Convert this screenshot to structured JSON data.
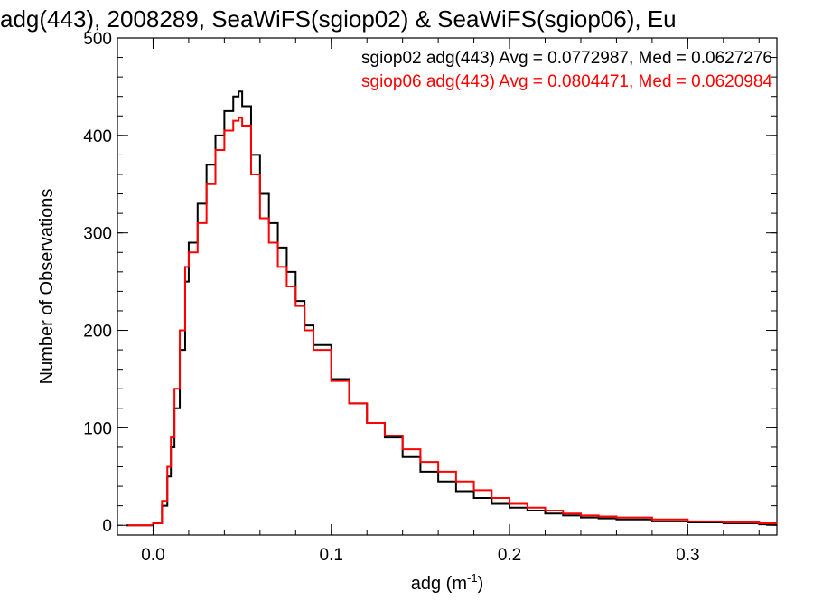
{
  "chart_data": {
    "type": "line",
    "title": "adg(443), 2008289, SeaWiFS(sgiop02) & SeaWiFS(sgiop06), Eu",
    "xlabel_main": "adg (m",
    "xlabel_sup": "-1",
    "xlabel_close": ")",
    "ylabel": "Number of Observations",
    "xlim": [
      -0.02,
      0.35
    ],
    "ylim": [
      -10,
      500
    ],
    "xticks": [
      0.0,
      0.1,
      0.2,
      0.3
    ],
    "xtick_labels": [
      "0.0",
      "0.1",
      "0.2",
      "0.3"
    ],
    "yticks": [
      0,
      100,
      200,
      300,
      400,
      500
    ],
    "ytick_labels": [
      "0",
      "100",
      "200",
      "300",
      "400",
      "500"
    ],
    "grid": false,
    "legend_position": "top-right",
    "series": [
      {
        "name": "sgiop02 adg(443) Avg = 0.0772987, Med = 0.0627276",
        "color": "#000000",
        "x": [
          -0.015,
          -0.01,
          -0.005,
          0.0,
          0.005,
          0.008,
          0.01,
          0.012,
          0.015,
          0.018,
          0.02,
          0.025,
          0.03,
          0.035,
          0.04,
          0.045,
          0.048,
          0.05,
          0.055,
          0.06,
          0.065,
          0.07,
          0.075,
          0.08,
          0.085,
          0.09,
          0.1,
          0.11,
          0.12,
          0.13,
          0.14,
          0.15,
          0.16,
          0.17,
          0.18,
          0.19,
          0.2,
          0.21,
          0.22,
          0.23,
          0.24,
          0.25,
          0.26,
          0.28,
          0.3,
          0.32,
          0.34,
          0.35
        ],
        "y": [
          0,
          0,
          0,
          2,
          20,
          50,
          80,
          120,
          180,
          250,
          290,
          330,
          370,
          400,
          425,
          440,
          445,
          430,
          380,
          340,
          310,
          285,
          260,
          230,
          205,
          185,
          150,
          125,
          105,
          90,
          70,
          55,
          45,
          35,
          28,
          22,
          18,
          15,
          12,
          10,
          8,
          7,
          6,
          4,
          3,
          2,
          1,
          1
        ]
      },
      {
        "name": "sgiop06 adg(443) Avg = 0.0804471, Med = 0.0620984",
        "color": "#ff0000",
        "x": [
          -0.015,
          -0.01,
          -0.005,
          0.0,
          0.005,
          0.008,
          0.01,
          0.012,
          0.015,
          0.018,
          0.02,
          0.025,
          0.03,
          0.035,
          0.04,
          0.045,
          0.048,
          0.05,
          0.055,
          0.06,
          0.065,
          0.07,
          0.075,
          0.08,
          0.085,
          0.09,
          0.1,
          0.11,
          0.12,
          0.13,
          0.14,
          0.15,
          0.16,
          0.17,
          0.18,
          0.19,
          0.2,
          0.21,
          0.22,
          0.23,
          0.24,
          0.25,
          0.26,
          0.28,
          0.3,
          0.32,
          0.34,
          0.35
        ],
        "y": [
          0,
          0,
          0,
          2,
          25,
          60,
          90,
          140,
          200,
          265,
          280,
          310,
          350,
          385,
          405,
          415,
          418,
          410,
          360,
          315,
          290,
          265,
          245,
          225,
          200,
          180,
          148,
          125,
          105,
          92,
          78,
          65,
          55,
          45,
          36,
          28,
          22,
          18,
          15,
          12,
          10,
          9,
          8,
          6,
          4,
          3,
          2,
          2
        ]
      }
    ]
  }
}
